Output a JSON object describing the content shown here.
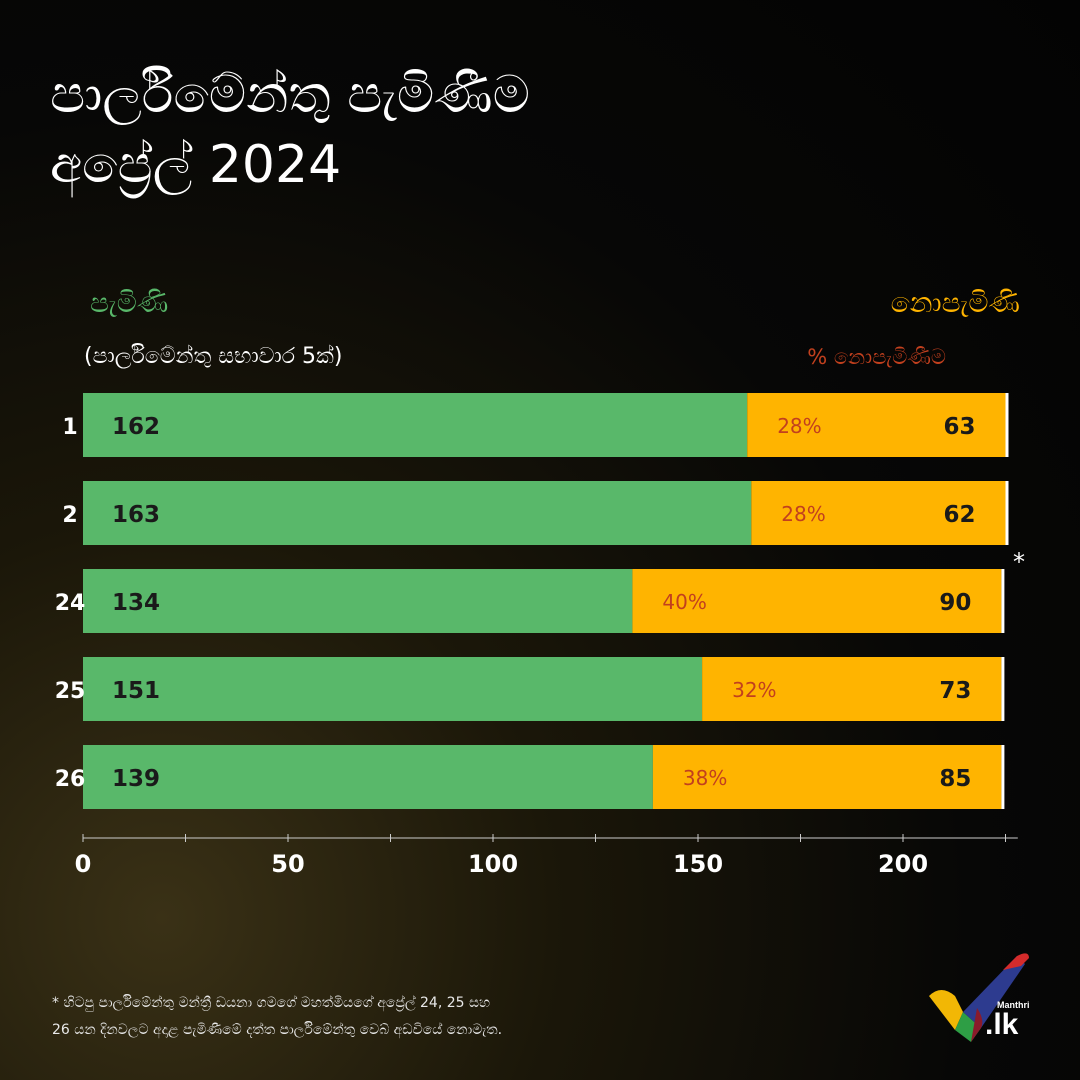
{
  "title": {
    "line1": "පාර්ලිමේන්තු පැමිණීම",
    "line2": "අප්‍රේල් 2024"
  },
  "legend": {
    "present": "පැමිණි",
    "absent": "නොපැමිණි",
    "sessions_note": "(පාර්ලිමේන්තු සභාවාර 5ක්)",
    "pct_header": "% නොපැමිණීම"
  },
  "colors": {
    "present": "#59b86a",
    "absent": "#ffb400",
    "pct_text": "#c2401e",
    "present_text": "#59b86a",
    "absent_text": "#ffb400"
  },
  "chart_data": {
    "type": "bar",
    "orientation": "horizontal",
    "stacked": true,
    "categories": [
      "1",
      "2",
      "24",
      "25",
      "26"
    ],
    "series": [
      {
        "name": "පැමිණි",
        "values": [
          162,
          163,
          134,
          151,
          139
        ]
      },
      {
        "name": "නොපැමිණි",
        "values": [
          63,
          62,
          90,
          73,
          85
        ]
      }
    ],
    "absence_pct_labels": [
      "28%",
      "28%",
      "40%",
      "32%",
      "38%"
    ],
    "asterisk_marker": "*",
    "xlim": [
      0,
      228
    ],
    "x_ticks": [
      0,
      50,
      100,
      150,
      200
    ],
    "x_tick_labels": [
      "0",
      "50",
      "100",
      "150",
      "200"
    ],
    "grid": false,
    "legend_position": "top"
  },
  "footnote": {
    "line1": "* හිටපු පාර්ලිමේන්තු මන්ත්‍රී ඩයනා ගමගේ මහත්මියගේ අප්‍රේල් 24, 25 සහ",
    "line2": "26 යන දිනවලට අදාළ පැමිණීමේ දත්ත පාර්ලිමේන්තු වෙබ් අඩවියේ නොමැත."
  },
  "logo": {
    "small_text": "Manthri",
    "big_text": ".lk"
  }
}
